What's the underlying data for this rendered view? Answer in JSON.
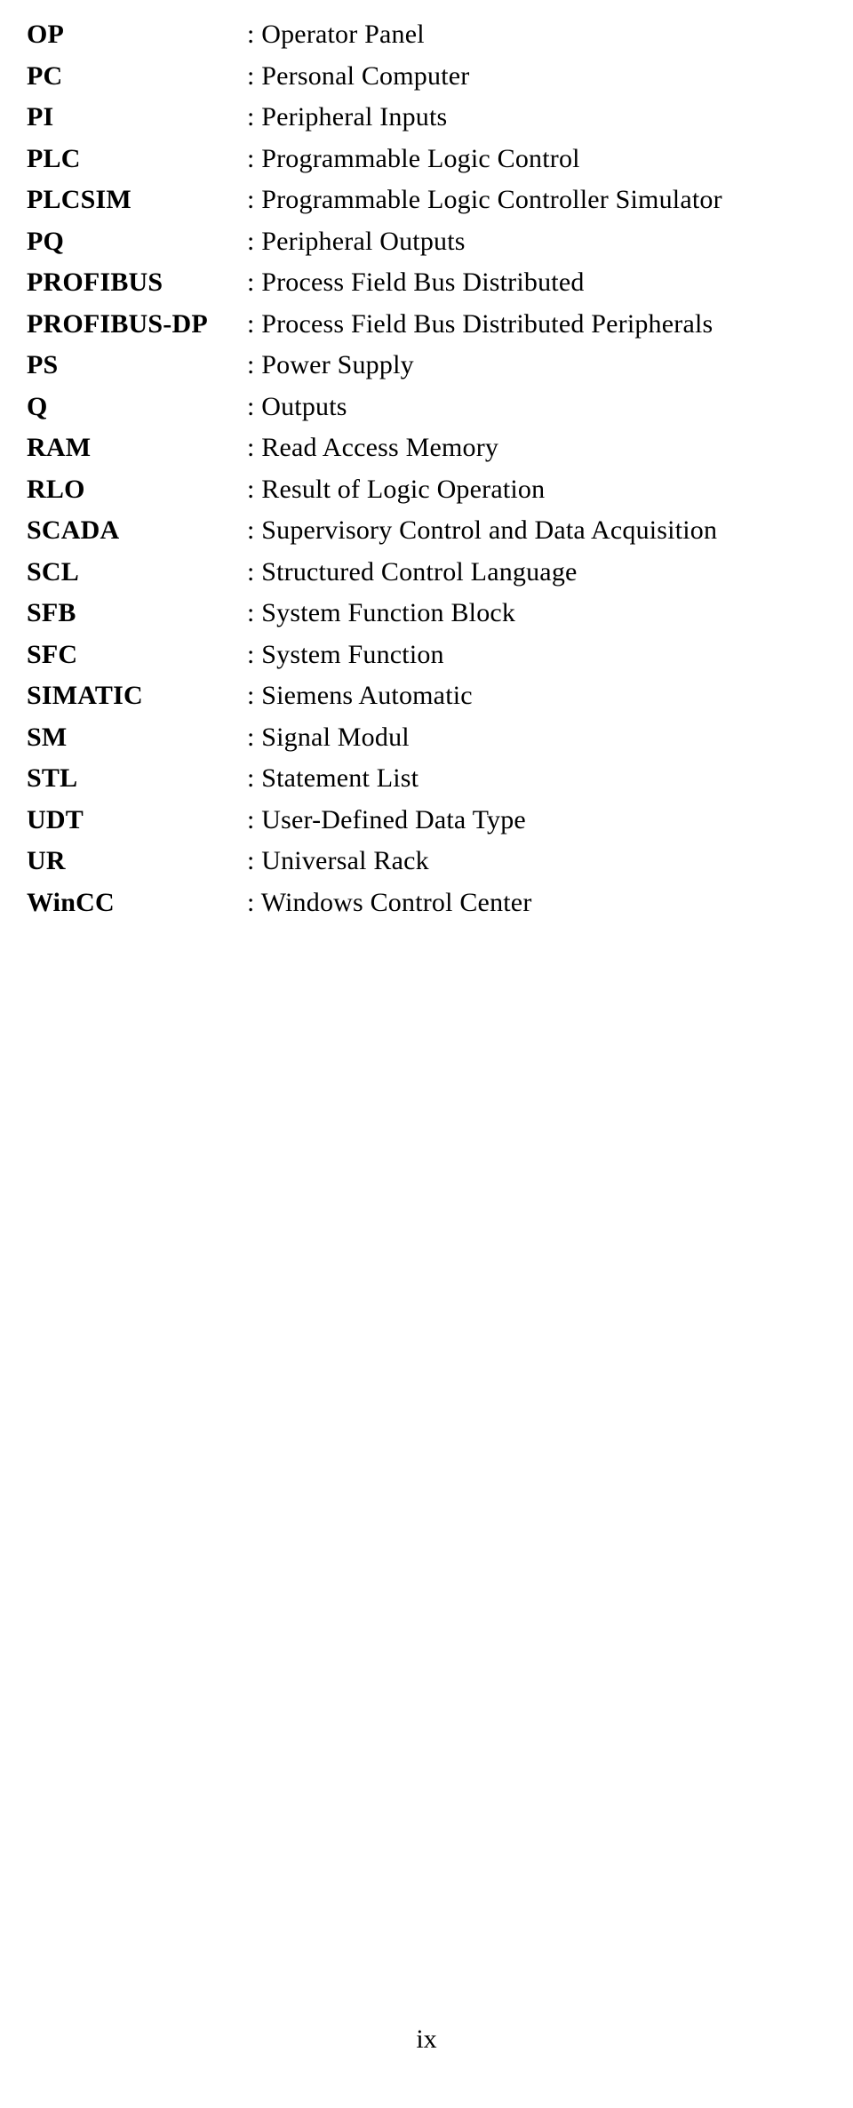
{
  "entries": [
    {
      "abbr": "OP",
      "def": ": Operator Panel"
    },
    {
      "abbr": "PC",
      "def": ": Personal Computer"
    },
    {
      "abbr": "PI",
      "def": ": Peripheral Inputs"
    },
    {
      "abbr": "PLC",
      "def": ": Programmable Logic Control"
    },
    {
      "abbr": "PLCSIM",
      "def": ": Programmable Logic Controller Simulator"
    },
    {
      "abbr": "PQ",
      "def": ": Peripheral Outputs"
    },
    {
      "abbr": "PROFIBUS",
      "def": ": Process Field Bus Distributed"
    },
    {
      "abbr": "PROFIBUS-DP",
      "def": ": Process Field Bus Distributed Peripherals"
    },
    {
      "abbr": "PS",
      "def": ": Power Supply"
    },
    {
      "abbr": "Q",
      "def": ": Outputs"
    },
    {
      "abbr": "RAM",
      "def": ": Read Access Memory"
    },
    {
      "abbr": "RLO",
      "def": ": Result of Logic Operation"
    },
    {
      "abbr": "SCADA",
      "def": ": Supervisory Control and Data Acquisition"
    },
    {
      "abbr": "SCL",
      "def": ": Structured Control Language"
    },
    {
      "abbr": "SFB",
      "def": ": System Function Block"
    },
    {
      "abbr": "SFC",
      "def": ": System Function"
    },
    {
      "abbr": "SIMATIC",
      "def": ": Siemens Automatic"
    },
    {
      "abbr": "SM",
      "def": ": Signal Modul"
    },
    {
      "abbr": "STL",
      "def": ": Statement List"
    },
    {
      "abbr": "UDT",
      "def": ": User-Defined Data Type"
    },
    {
      "abbr": "UR",
      "def": ": Universal Rack"
    },
    {
      "abbr": "WinCC",
      "def": ": Windows Control Center"
    }
  ],
  "pageNumber": "ix"
}
